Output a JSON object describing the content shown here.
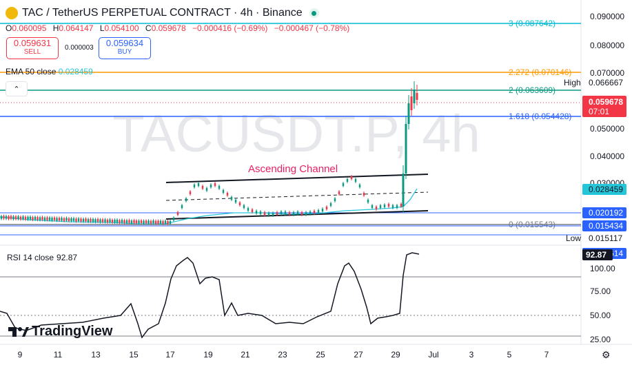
{
  "header": {
    "symbol_title": "TAC / TetherUS PERPETUAL CONTRACT · 4h · Binance",
    "ohlc": [
      {
        "key": "O",
        "value": "0.060095"
      },
      {
        "key": "H",
        "value": "0.064147"
      },
      {
        "key": "L",
        "value": "0.054100"
      },
      {
        "key": "C",
        "value": "0.059678"
      }
    ],
    "change_1": "−0.000416 (−0.69%)",
    "change_2": "−0.000467 (−0.78%)"
  },
  "trade": {
    "sell_price": "0.059631",
    "sell_label": "SELL",
    "spread": "0.000003",
    "buy_price": "0.059634",
    "buy_label": "BUY"
  },
  "ema": {
    "name": "EMA 50 close",
    "value": "0.028459",
    "color": "#26c6da"
  },
  "watermark": "TACUSDT.P, 4h",
  "annotation": {
    "text": "Ascending Channel",
    "color": "#e91e63"
  },
  "fib_levels": [
    {
      "label": "3 (0.087642)",
      "value": 0.087642,
      "color": "#00bcd4"
    },
    {
      "label": "2.272 (0.070146)",
      "value": 0.070146,
      "color": "#ff9800"
    },
    {
      "label": "2 (0.063609)",
      "value": 0.063609,
      "color": "#089981"
    },
    {
      "label": "1.618 (0.054428)",
      "value": 0.054428,
      "color": "#2962ff"
    },
    {
      "label": "0 (0.015543)",
      "value": 0.015543,
      "color": "#787b86"
    }
  ],
  "price_axis": {
    "ticks": [
      "0.090000",
      "0.080000",
      "0.070000",
      "0.050000",
      "0.040000",
      "0.030000"
    ],
    "high_label": "High",
    "high_value": "0.066667",
    "last_price": "0.059678",
    "countdown": "07:01",
    "ema_tag": "0.028459",
    "tag_020192": "0.020192",
    "tag_015434": "0.015434",
    "low_label": "Low",
    "low_value": "0.015117",
    "tag_005614": "0.005614"
  },
  "rsi": {
    "name": "RSI 14 close",
    "value": "92.87",
    "ticks": [
      "100.00",
      "75.00",
      "50.00",
      "25.00"
    ],
    "tag": "92.87"
  },
  "time_axis": {
    "labels": [
      "9",
      "11",
      "13",
      "15",
      "17",
      "19",
      "21",
      "23",
      "25",
      "27",
      "29",
      "Jul",
      "3",
      "5",
      "7"
    ]
  },
  "brand": {
    "name": "TradingView"
  },
  "icons": {
    "settings": "gear-icon",
    "collapse": "chevron-up-icon"
  },
  "colors": {
    "up": "#089981",
    "down": "#f23645",
    "axis_tag": "#2962ff",
    "last_tag": "#f23645"
  }
}
